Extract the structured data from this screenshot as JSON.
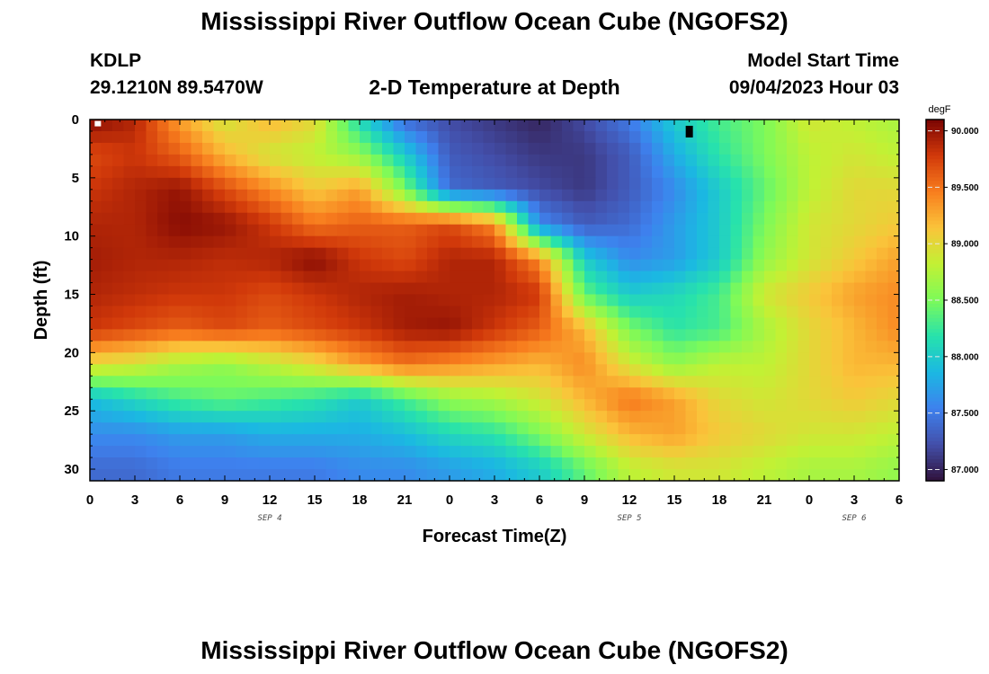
{
  "header": {
    "title": "Mississippi River Outflow Ocean Cube (NGOFS2)",
    "station_id": "KDLP",
    "station_location": "29.1210N  89.5470W",
    "plot_title": "2-D Temperature at Depth",
    "start_label": "Model Start Time",
    "start_value": "09/04/2023 Hour 03"
  },
  "footer": {
    "title": "Mississippi River Outflow Ocean Cube (NGOFS2)"
  },
  "chart_data": {
    "type": "heatmap",
    "title": "2-D Temperature at Depth",
    "xlabel": "Forecast Time(Z)",
    "ylabel": "Depth (ft)",
    "x_hours": [
      0,
      3,
      6,
      9,
      12,
      15,
      18,
      21,
      24,
      27,
      30,
      33,
      36,
      39,
      42,
      45,
      48,
      51,
      54
    ],
    "x_tick_labels": [
      "0",
      "3",
      "6",
      "9",
      "12",
      "15",
      "18",
      "21",
      "0",
      "3",
      "6",
      "9",
      "12",
      "15",
      "18",
      "21",
      "0",
      "3",
      "6"
    ],
    "xlim": [
      0,
      54
    ],
    "date_labels": [
      {
        "label": "SEP 4",
        "hour": 12
      },
      {
        "label": "SEP 5",
        "hour": 36
      },
      {
        "label": "SEP 6",
        "hour": 51
      }
    ],
    "y_depth_ft": [
      0,
      3,
      6,
      9,
      12,
      15,
      18,
      21,
      24,
      27,
      30
    ],
    "y_ticks": [
      0,
      5,
      10,
      15,
      20,
      25,
      30
    ],
    "ylim": [
      0,
      31
    ],
    "values_degF": [
      [
        90.05,
        89.9,
        89.3,
        88.9,
        89.2,
        89.0,
        88.1,
        87.4,
        87.2,
        87.1,
        87.0,
        87.2,
        87.5,
        88.0,
        88.3,
        88.5,
        88.9,
        88.8,
        88.7
      ],
      [
        89.7,
        89.8,
        89.6,
        89.2,
        88.9,
        88.8,
        88.6,
        88.0,
        87.3,
        87.2,
        87.1,
        87.1,
        87.3,
        87.8,
        88.2,
        88.5,
        88.8,
        88.9,
        88.8
      ],
      [
        89.8,
        89.9,
        90.0,
        89.7,
        89.4,
        89.1,
        89.3,
        88.5,
        87.4,
        87.3,
        87.2,
        87.1,
        87.3,
        87.6,
        88.0,
        88.4,
        88.8,
        89.0,
        89.0
      ],
      [
        89.9,
        89.9,
        90.05,
        90.0,
        89.8,
        89.5,
        89.6,
        89.6,
        89.7,
        89.4,
        87.6,
        87.3,
        87.4,
        87.7,
        88.0,
        88.5,
        88.9,
        89.0,
        89.1
      ],
      [
        89.95,
        89.9,
        89.9,
        89.85,
        89.9,
        90.05,
        89.8,
        89.7,
        89.9,
        89.9,
        89.4,
        88.0,
        87.6,
        87.7,
        88.0,
        88.6,
        88.9,
        89.1,
        89.3
      ],
      [
        89.9,
        89.85,
        89.8,
        89.8,
        89.7,
        89.8,
        89.9,
        89.95,
        89.9,
        89.9,
        89.8,
        88.4,
        88.0,
        88.1,
        88.3,
        88.9,
        89.1,
        89.3,
        89.4
      ],
      [
        89.8,
        89.7,
        89.6,
        89.7,
        89.6,
        89.7,
        89.8,
        89.95,
        90.0,
        89.8,
        89.6,
        89.2,
        88.5,
        88.2,
        88.3,
        88.7,
        89.0,
        89.2,
        89.4
      ],
      [
        89.0,
        88.9,
        88.7,
        88.6,
        88.8,
        89.0,
        89.3,
        89.5,
        89.4,
        89.3,
        89.2,
        89.4,
        88.9,
        88.6,
        88.8,
        88.8,
        89.0,
        89.2,
        89.2
      ],
      [
        87.9,
        88.1,
        88.3,
        88.4,
        88.3,
        88.2,
        88.0,
        88.3,
        88.6,
        88.7,
        88.9,
        89.2,
        89.5,
        89.3,
        89.0,
        88.9,
        89.0,
        89.1,
        89.0
      ],
      [
        87.6,
        87.6,
        87.7,
        87.7,
        87.8,
        87.8,
        87.8,
        87.9,
        88.1,
        88.2,
        88.5,
        88.9,
        89.2,
        89.3,
        89.1,
        89.0,
        88.9,
        88.9,
        88.8
      ],
      [
        87.4,
        87.4,
        87.5,
        87.5,
        87.5,
        87.5,
        87.6,
        87.6,
        87.7,
        87.8,
        88.0,
        88.4,
        88.8,
        88.9,
        88.9,
        88.8,
        88.7,
        88.7,
        88.6
      ]
    ],
    "markers": [
      {
        "type": "white-square",
        "hour": 0.5,
        "depth_ft": 0.2
      },
      {
        "type": "black-box",
        "hour": 40,
        "depth_ft": 1
      }
    ],
    "colorbar": {
      "unit": "degF",
      "vmin": 86.9,
      "vmax": 90.1,
      "ticks": [
        87.0,
        87.5,
        88.0,
        88.5,
        89.0,
        89.5,
        90.0
      ],
      "tick_labels": [
        "87.000",
        "87.500",
        "88.000",
        "88.500",
        "89.000",
        "89.500",
        "90.000"
      ]
    }
  }
}
